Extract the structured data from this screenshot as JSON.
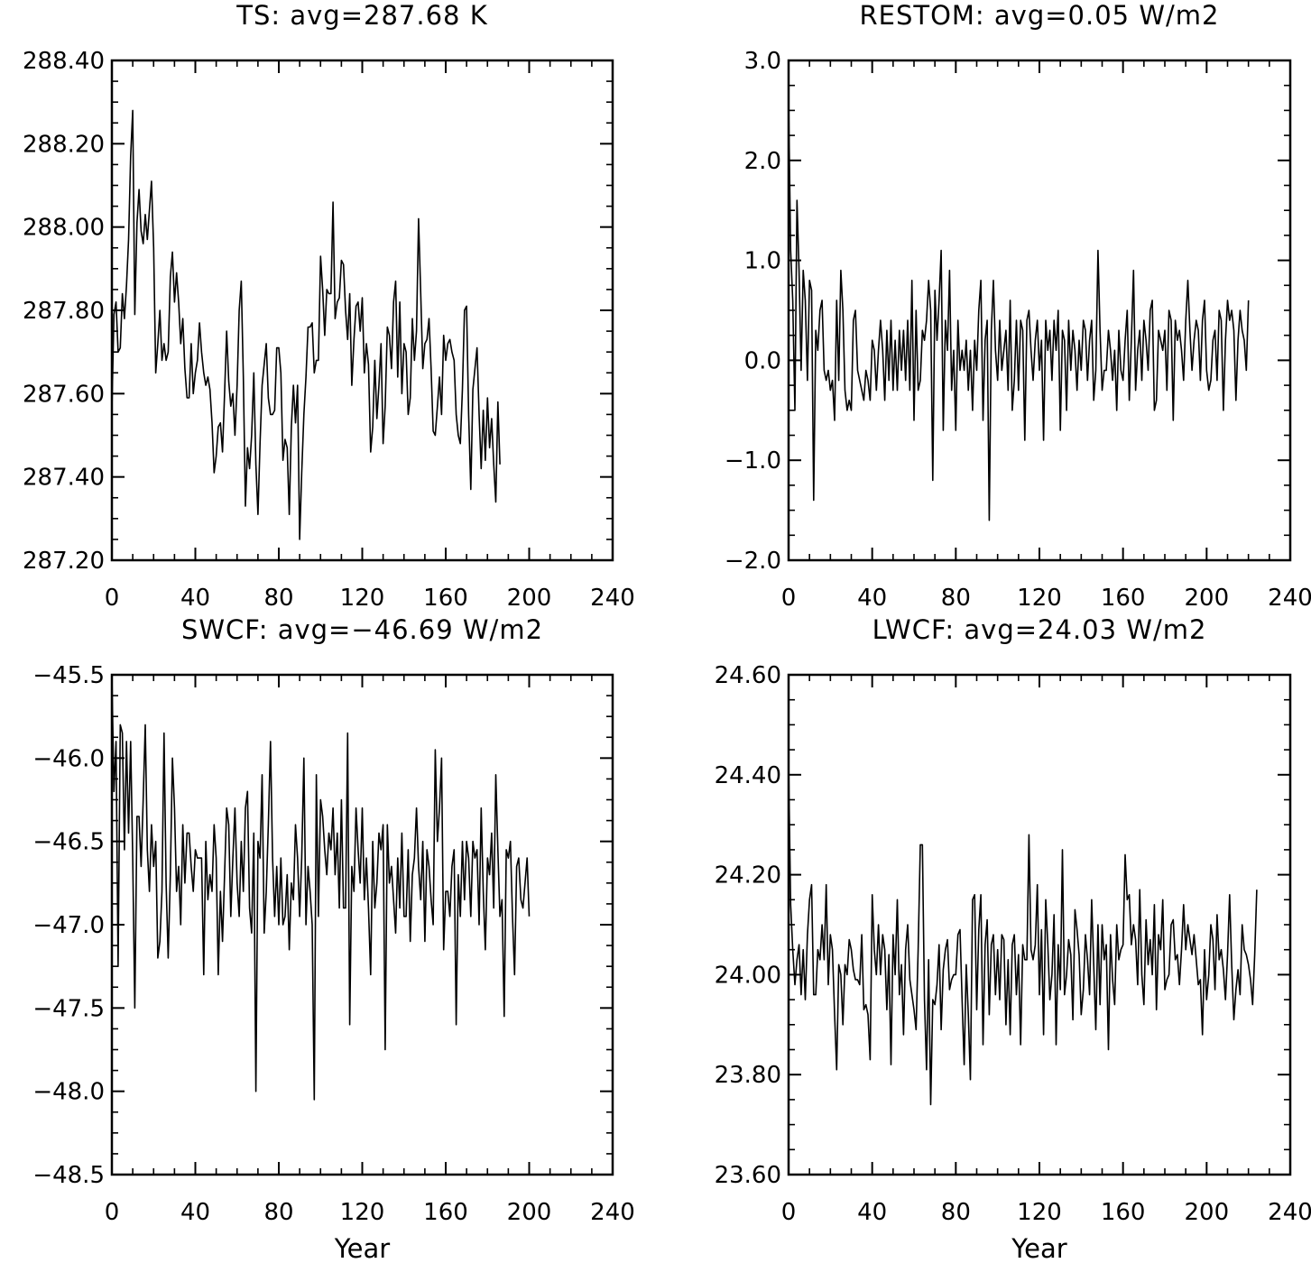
{
  "chart_data": [
    {
      "type": "line",
      "title": "TS: avg=287.68 K",
      "xlabel": "",
      "ylabel": "",
      "xlim": [
        0,
        240
      ],
      "ylim": [
        287.2,
        288.4
      ],
      "x_ticks": [
        "0",
        "40",
        "80",
        "120",
        "160",
        "200",
        "240"
      ],
      "y_ticks": [
        "287.20",
        "287.40",
        "287.60",
        "287.80",
        "288.00",
        "288.20",
        "288.40"
      ],
      "grid": false,
      "x_start": 0,
      "x_step": 1,
      "series": [
        {
          "values": [
            287.56,
            287.79,
            287.82,
            287.7,
            287.71,
            287.84,
            287.78,
            287.86,
            287.97,
            288.17,
            288.28,
            287.79,
            288.01,
            288.09,
            287.99,
            287.96,
            288.03,
            287.97,
            288.04,
            288.11,
            287.95,
            287.65,
            287.72,
            287.8,
            287.68,
            287.72,
            287.68,
            287.7,
            287.88,
            287.94,
            287.82,
            287.89,
            287.82,
            287.72,
            287.78,
            287.66,
            287.59,
            287.59,
            287.72,
            287.6,
            287.65,
            287.68,
            287.77,
            287.7,
            287.65,
            287.62,
            287.64,
            287.61,
            287.53,
            287.41,
            287.45,
            287.52,
            287.53,
            287.46,
            287.6,
            287.75,
            287.63,
            287.57,
            287.6,
            287.5,
            287.62,
            287.8,
            287.87,
            287.64,
            287.33,
            287.47,
            287.42,
            287.5,
            287.65,
            287.43,
            287.31,
            287.48,
            287.62,
            287.67,
            287.72,
            287.59,
            287.55,
            287.55,
            287.56,
            287.71,
            287.71,
            287.65,
            287.44,
            287.49,
            287.47,
            287.31,
            287.52,
            287.62,
            287.53,
            287.62,
            287.25,
            287.41,
            287.55,
            287.64,
            287.76,
            287.76,
            287.77,
            287.65,
            287.68,
            287.68,
            287.93,
            287.85,
            287.74,
            287.85,
            287.84,
            287.84,
            288.06,
            287.78,
            287.82,
            287.83,
            287.92,
            287.91,
            287.8,
            287.73,
            287.84,
            287.62,
            287.73,
            287.81,
            287.82,
            287.75,
            287.83,
            287.65,
            287.72,
            287.67,
            287.46,
            287.52,
            287.68,
            287.54,
            287.62,
            287.72,
            287.48,
            287.57,
            287.76,
            287.74,
            287.66,
            287.82,
            287.87,
            287.64,
            287.82,
            287.6,
            287.72,
            287.7,
            287.55,
            287.59,
            287.78,
            287.68,
            287.75,
            288.02,
            287.84,
            287.66,
            287.72,
            287.73,
            287.78,
            287.66,
            287.51,
            287.5,
            287.57,
            287.64,
            287.55,
            287.74,
            287.68,
            287.72,
            287.73,
            287.7,
            287.68,
            287.55,
            287.5,
            287.48,
            287.61,
            287.8,
            287.81,
            287.55,
            287.37,
            287.61,
            287.66,
            287.71,
            287.55,
            287.42,
            287.56,
            287.44,
            287.59,
            287.47,
            287.54,
            287.43,
            287.34,
            287.58,
            287.43
          ]
        }
      ]
    },
    {
      "type": "line",
      "title": "RESTOM: avg=0.05 W/m2",
      "xlabel": "",
      "ylabel": "",
      "xlim": [
        0,
        240
      ],
      "ylim": [
        -2.0,
        3.0
      ],
      "x_ticks": [
        "0",
        "40",
        "80",
        "120",
        "160",
        "200",
        "240"
      ],
      "y_ticks": [
        "−2.0",
        "−1.0",
        "0.0",
        "1.0",
        "2.0",
        "3.0"
      ],
      "grid": false,
      "x_start": 0,
      "x_step": 1,
      "series": [
        {
          "values": [
            2.6,
            1.1,
            0.6,
            -0.5,
            1.6,
            0.9,
            -0.1,
            0.9,
            0.6,
            -0.2,
            0.8,
            0.7,
            -1.4,
            0.3,
            0.1,
            0.5,
            0.6,
            -0.1,
            -0.2,
            -0.1,
            -0.3,
            -0.2,
            -0.6,
            0.6,
            -0.2,
            0.9,
            0.5,
            -0.3,
            -0.5,
            -0.4,
            -0.5,
            0.4,
            0.5,
            -0.1,
            -0.2,
            -0.3,
            -0.4,
            -0.1,
            -0.2,
            -0.4,
            0.2,
            0.1,
            -0.3,
            0.1,
            0.4,
            0.1,
            -0.4,
            0.3,
            -0.2,
            0.4,
            -0.3,
            0.2,
            -0.3,
            0.3,
            -0.1,
            0.3,
            -0.2,
            0.4,
            -0.3,
            0.8,
            -0.6,
            0.5,
            -0.3,
            -0.2,
            0.3,
            0.2,
            0.4,
            0.8,
            0.5,
            -1.2,
            0.7,
            0.2,
            0.6,
            1.1,
            -0.7,
            0.4,
            0.1,
            0.9,
            -0.3,
            0.1,
            -0.7,
            0.4,
            -0.1,
            0.1,
            -0.1,
            0.2,
            -0.3,
            0.1,
            -0.5,
            0.2,
            -0.1,
            0.5,
            0.8,
            -0.6,
            0.2,
            0.4,
            -1.6,
            0.3,
            0.8,
            0.1,
            -0.2,
            0.4,
            -0.1,
            0.1,
            0.3,
            -0.3,
            0.6,
            -0.5,
            -0.2,
            0.4,
            -0.3,
            0.4,
            0.3,
            -0.8,
            0.4,
            0.5,
            0.1,
            -0.2,
            0.2,
            0.4,
            -0.1,
            0.2,
            -0.8,
            0.4,
            0.1,
            0.3,
            -0.2,
            0.4,
            0.1,
            0.5,
            -0.7,
            0.3,
            0.2,
            -0.5,
            0.4,
            -0.1,
            0.3,
            0.1,
            -0.3,
            0.2,
            -0.1,
            0.4,
            0.3,
            -0.2,
            0.2,
            0.4,
            -0.4,
            -0.1,
            1.1,
            0.3,
            -0.3,
            -0.1,
            -0.1,
            0.3,
            0.1,
            -0.2,
            0.1,
            -0.5,
            0.3,
            -0.1,
            -0.2,
            0.2,
            0.5,
            -0.4,
            0.2,
            0.9,
            -0.3,
            0.1,
            0.3,
            -0.2,
            0.4,
            0.2,
            -0.1,
            0.5,
            0.6,
            -0.5,
            -0.4,
            0.3,
            0.2,
            0.1,
            0.3,
            -0.3,
            0.5,
            0.4,
            -0.6,
            0.4,
            0.2,
            0.3,
            0.1,
            -0.2,
            0.4,
            0.8,
            0.3,
            -0.1,
            0.2,
            0.4,
            0.3,
            -0.2,
            0.4,
            0.6,
            -0.1,
            -0.3,
            -0.2,
            0.2,
            0.3,
            -0.2,
            0.5,
            0.4,
            -0.5,
            0.2,
            0.6,
            0.4,
            0.5,
            0.3,
            -0.4,
            0.2,
            0.5,
            0.3,
            0.2,
            -0.1,
            0.6
          ]
        }
      ]
    },
    {
      "type": "line",
      "title": "SWCF: avg=−46.69 W/m2",
      "xlabel": "Year",
      "ylabel": "",
      "xlim": [
        0,
        240
      ],
      "ylim": [
        -48.5,
        -45.5
      ],
      "x_ticks": [
        "0",
        "40",
        "80",
        "120",
        "160",
        "200",
        "240"
      ],
      "y_ticks": [
        "−48.5",
        "−48.0",
        "−47.5",
        "−47.0",
        "−46.5",
        "−46.0",
        "−45.5"
      ],
      "grid": false,
      "x_start": 0,
      "x_step": 1,
      "series": [
        {
          "values": [
            -45.5,
            -46.2,
            -45.9,
            -47.25,
            -45.8,
            -45.85,
            -46.55,
            -45.9,
            -46.45,
            -45.9,
            -46.6,
            -47.5,
            -46.35,
            -46.35,
            -46.65,
            -46.25,
            -45.8,
            -46.55,
            -46.8,
            -46.4,
            -46.65,
            -46.5,
            -47.2,
            -47.1,
            -46.8,
            -45.85,
            -46.75,
            -47.2,
            -46.7,
            -46.0,
            -46.3,
            -46.8,
            -46.65,
            -47.0,
            -46.4,
            -46.75,
            -46.45,
            -46.45,
            -46.65,
            -46.8,
            -46.55,
            -46.6,
            -46.6,
            -46.6,
            -47.3,
            -46.5,
            -46.85,
            -46.7,
            -46.8,
            -46.4,
            -46.6,
            -47.3,
            -46.8,
            -47.1,
            -46.7,
            -46.3,
            -46.4,
            -46.95,
            -46.6,
            -46.3,
            -46.75,
            -46.95,
            -46.5,
            -46.8,
            -46.3,
            -46.2,
            -46.9,
            -47.05,
            -46.45,
            -48.0,
            -46.5,
            -46.6,
            -46.1,
            -47.05,
            -46.8,
            -46.4,
            -45.9,
            -46.6,
            -46.95,
            -46.65,
            -47.0,
            -46.6,
            -47.0,
            -46.95,
            -46.7,
            -47.15,
            -46.75,
            -46.85,
            -46.4,
            -46.6,
            -46.95,
            -46.6,
            -46.0,
            -47.0,
            -46.65,
            -46.8,
            -47.0,
            -48.05,
            -46.1,
            -46.95,
            -46.25,
            -46.35,
            -46.55,
            -46.7,
            -46.45,
            -46.55,
            -46.3,
            -46.7,
            -46.45,
            -46.9,
            -46.25,
            -46.9,
            -46.9,
            -45.85,
            -47.6,
            -46.65,
            -46.8,
            -46.3,
            -46.55,
            -46.75,
            -46.3,
            -46.85,
            -46.6,
            -46.9,
            -47.3,
            -46.5,
            -46.9,
            -46.75,
            -46.45,
            -46.55,
            -46.4,
            -47.75,
            -46.4,
            -46.75,
            -46.65,
            -46.85,
            -47.05,
            -46.6,
            -46.9,
            -46.45,
            -46.95,
            -46.95,
            -46.55,
            -47.1,
            -46.7,
            -46.6,
            -46.3,
            -46.65,
            -46.85,
            -46.5,
            -47.1,
            -46.55,
            -46.65,
            -46.85,
            -47.0,
            -45.95,
            -46.5,
            -46.3,
            -46.0,
            -47.15,
            -46.8,
            -46.8,
            -46.95,
            -46.65,
            -46.55,
            -47.6,
            -46.7,
            -46.95,
            -46.5,
            -46.85,
            -46.5,
            -46.6,
            -46.95,
            -46.5,
            -46.6,
            -46.55,
            -47.0,
            -46.3,
            -46.8,
            -47.15,
            -46.6,
            -46.7,
            -46.45,
            -46.9,
            -46.1,
            -46.55,
            -46.95,
            -46.85,
            -47.55,
            -46.55,
            -46.6,
            -46.5,
            -46.95,
            -47.3,
            -46.65,
            -46.6,
            -46.85,
            -46.9,
            -46.75,
            -46.6,
            -46.95
          ]
        }
      ]
    },
    {
      "type": "line",
      "title": "LWCF: avg=24.03 W/m2",
      "xlabel": "Year",
      "ylabel": "",
      "xlim": [
        0,
        240
      ],
      "ylim": [
        23.6,
        24.6
      ],
      "x_ticks": [
        "0",
        "40",
        "80",
        "120",
        "160",
        "200",
        "240"
      ],
      "y_ticks": [
        "23.60",
        "23.80",
        "24.00",
        "24.20",
        "24.40",
        "24.60"
      ],
      "grid": false,
      "x_start": 0,
      "x_step": 1,
      "series": [
        {
          "values": [
            24.42,
            24.14,
            24.05,
            23.98,
            24.03,
            24.06,
            23.96,
            24.05,
            23.95,
            24.08,
            24.15,
            24.18,
            23.96,
            23.96,
            24.05,
            24.03,
            24.1,
            24.03,
            24.18,
            23.98,
            24.08,
            24.05,
            23.92,
            23.81,
            24.02,
            24.0,
            23.9,
            24.02,
            24.0,
            24.07,
            24.05,
            24.01,
            23.99,
            23.99,
            23.98,
            24.08,
            23.93,
            23.94,
            23.92,
            23.83,
            24.16,
            24.05,
            24.0,
            24.1,
            24.0,
            24.08,
            24.05,
            23.93,
            24.04,
            23.82,
            24.08,
            24.0,
            24.15,
            23.96,
            24.02,
            23.88,
            24.05,
            24.1,
            23.99,
            23.96,
            23.93,
            23.89,
            24.05,
            24.26,
            24.26,
            23.95,
            23.81,
            24.03,
            23.74,
            23.95,
            23.94,
            23.98,
            24.06,
            23.89,
            24.01,
            24.05,
            24.07,
            23.97,
            23.99,
            24.0,
            24.0,
            24.08,
            24.09,
            23.95,
            23.82,
            24.02,
            23.92,
            23.79,
            24.15,
            24.16,
            23.93,
            24.09,
            24.16,
            23.86,
            24.06,
            24.11,
            23.92,
            24.06,
            24.08,
            23.96,
            24.05,
            23.95,
            24.08,
            24.07,
            23.9,
            24.03,
            23.88,
            24.06,
            24.08,
            23.96,
            24.04,
            23.86,
            24.06,
            24.03,
            24.03,
            24.28,
            24.05,
            24.03,
            24.06,
            24.18,
            23.96,
            24.09,
            23.88,
            24.15,
            24.06,
            23.95,
            24.0,
            24.12,
            23.86,
            24.06,
            23.97,
            24.25,
            23.96,
            24.0,
            24.07,
            24.04,
            23.91,
            24.13,
            24.09,
            24.04,
            23.92,
            23.97,
            24.08,
            24.03,
            23.96,
            24.15,
            24.02,
            23.89,
            24.1,
            23.94,
            24.1,
            24.03,
            24.06,
            23.85,
            24.08,
            23.99,
            23.94,
            24.1,
            24.03,
            24.05,
            24.06,
            24.24,
            24.15,
            24.16,
            24.06,
            24.1,
            24.07,
            23.98,
            24.17,
            24.0,
            23.94,
            24.11,
            24.02,
            24.07,
            24.0,
            24.14,
            23.93,
            24.08,
            24.05,
            24.15,
            23.97,
            23.99,
            24.0,
            24.1,
            24.11,
            24.03,
            24.04,
            23.98,
            24.05,
            24.14,
            24.05,
            24.1,
            24.07,
            24.04,
            24.08,
            24.03,
            23.98,
            23.99,
            23.88,
            24.05,
            23.95,
            24.0,
            24.1,
            24.07,
            23.97,
            24.12,
            24.03,
            24.05,
            24.01,
            23.95,
            24.04,
            24.16,
            24.02,
            23.91,
            23.97,
            24.01,
            23.96,
            24.1,
            24.05,
            24.04,
            24.02,
            23.99,
            23.94,
            24.04,
            24.17
          ]
        }
      ]
    }
  ]
}
